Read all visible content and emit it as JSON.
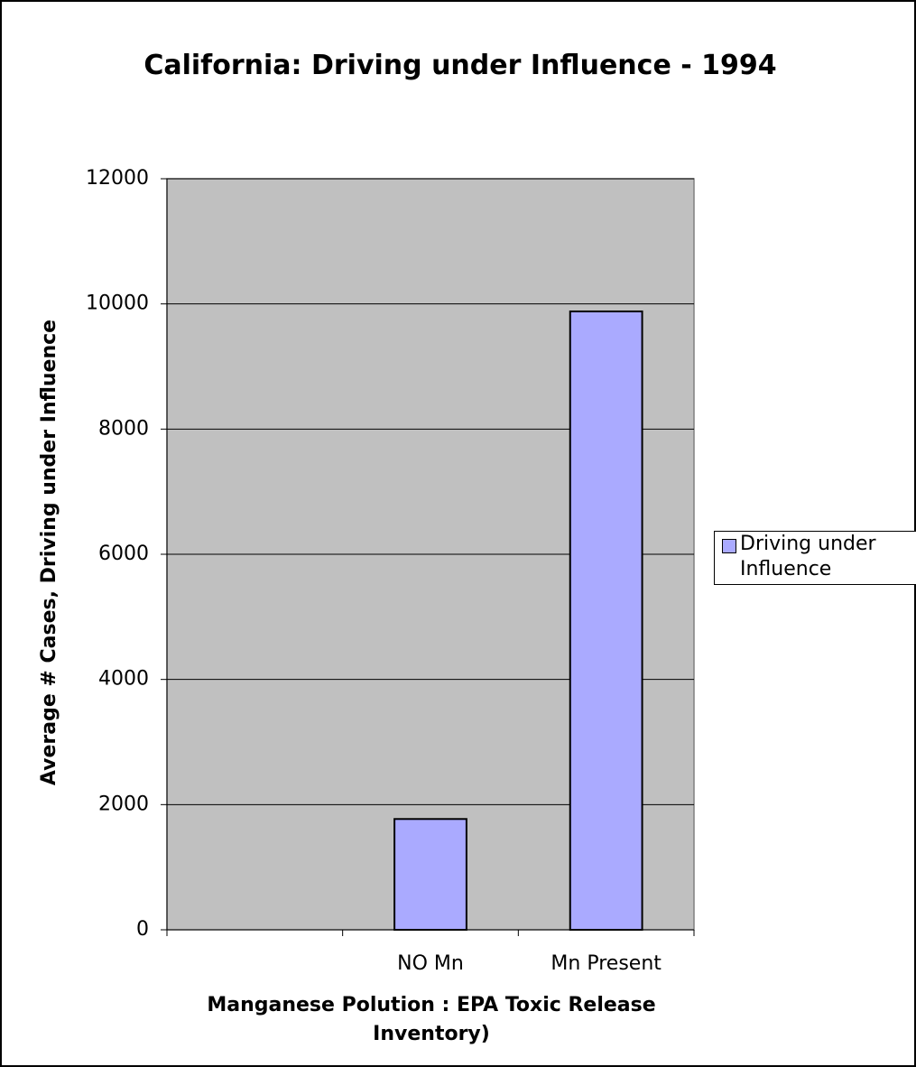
{
  "chart_data": {
    "type": "bar",
    "title": "California: Driving under Influence - 1994",
    "xlabel": "Manganese Polution : EPA Toxic Release Inventory)",
    "ylabel": "Average # Cases, Driving under Influence",
    "categories": [
      null,
      "NO Mn",
      "Mn Present"
    ],
    "series": [
      {
        "name": "Driving under Influence",
        "color": "#aaaaff",
        "values": [
          null,
          1770,
          9880
        ]
      }
    ],
    "ylim": [
      0,
      12000
    ],
    "yticks": [
      0,
      2000,
      4000,
      6000,
      8000,
      10000,
      12000
    ],
    "grid": true,
    "legend": "right"
  }
}
